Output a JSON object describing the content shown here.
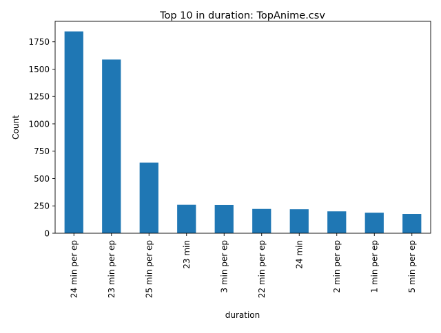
{
  "chart_data": {
    "type": "bar",
    "title": "Top 10 in duration: TopAnime.csv",
    "xlabel": "duration",
    "ylabel": "Count",
    "categories": [
      "24 min per ep",
      "23 min per ep",
      "25 min per ep",
      "23 min",
      "3 min per ep",
      "22 min per ep",
      "24 min",
      "2 min per ep",
      "1 min per ep",
      "5 min per ep"
    ],
    "values": [
      1845,
      1588,
      645,
      260,
      258,
      222,
      219,
      200,
      188,
      176
    ],
    "ylim": [
      0,
      1937
    ],
    "yticks": [
      0,
      250,
      500,
      750,
      1000,
      1250,
      1500,
      1750
    ],
    "grid": false,
    "legend": "none",
    "colors": {
      "bar": "#1f77b4",
      "axis": "#000000",
      "background": "#ffffff"
    }
  }
}
